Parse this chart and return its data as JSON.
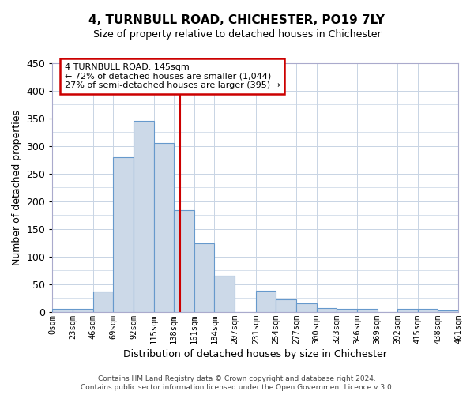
{
  "title": "4, TURNBULL ROAD, CHICHESTER, PO19 7LY",
  "subtitle": "Size of property relative to detached houses in Chichester",
  "xlabel": "Distribution of detached houses by size in Chichester",
  "ylabel": "Number of detached properties",
  "bar_color": "#ccd9e8",
  "bar_edge_color": "#6699cc",
  "background_color": "#ffffff",
  "grid_color": "#c8d4e4",
  "bin_edges": [
    0,
    23,
    46,
    69,
    92,
    115,
    138,
    161,
    184,
    207,
    231,
    254,
    277,
    300,
    323,
    346,
    369,
    392,
    415,
    438,
    461
  ],
  "bar_heights": [
    5,
    5,
    37,
    280,
    345,
    305,
    184,
    124,
    65,
    0,
    38,
    22,
    15,
    7,
    5,
    5,
    0,
    5,
    5,
    3
  ],
  "tick_labels": [
    "0sqm",
    "23sqm",
    "46sqm",
    "69sqm",
    "92sqm",
    "115sqm",
    "138sqm",
    "161sqm",
    "184sqm",
    "207sqm",
    "231sqm",
    "254sqm",
    "277sqm",
    "300sqm",
    "323sqm",
    "346sqm",
    "369sqm",
    "392sqm",
    "415sqm",
    "438sqm",
    "461sqm"
  ],
  "vline_x": 145,
  "vline_color": "#cc0000",
  "ylim": [
    0,
    450
  ],
  "annotation_title": "4 TURNBULL ROAD: 145sqm",
  "annotation_line1": "← 72% of detached houses are smaller (1,044)",
  "annotation_line2": "27% of semi-detached houses are larger (395) →",
  "annotation_box_color": "#ffffff",
  "annotation_box_edge": "#cc0000",
  "footer1": "Contains HM Land Registry data © Crown copyright and database right 2024.",
  "footer2": "Contains public sector information licensed under the Open Government Licence v 3.0."
}
